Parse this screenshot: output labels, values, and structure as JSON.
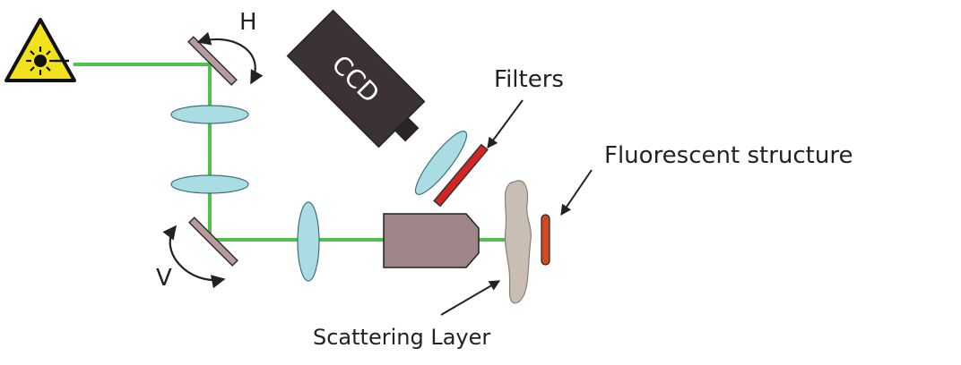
{
  "labels": {
    "mirror_top": "H",
    "mirror_bottom": "V",
    "camera": "CCD",
    "filters": "Filters",
    "target": "Fluorescent structure",
    "scatter": "Scattering Layer"
  },
  "icons": {
    "laser": "laser-warning-icon"
  },
  "colors": {
    "beam": "#4ec24a",
    "lens": "#a9dde3",
    "lens_stroke": "#3d6f78",
    "mirror": "#b79a9e",
    "objective": "#9e8588",
    "camera_body": "#3a3234",
    "filter_red": "#d52424",
    "fluorescent": "#d8481e",
    "scatter": "#c9beb4",
    "laser_yellow": "#f2e21b"
  }
}
